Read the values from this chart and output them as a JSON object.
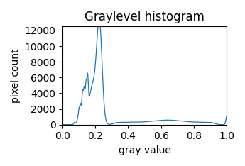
{
  "title": "Graylevel histogram",
  "xlabel": "gray value",
  "ylabel": "pixel count",
  "line_color": "#1f77b4",
  "xlim": [
    0.0,
    1.0
  ],
  "ylim": [
    0,
    12500
  ],
  "yticks": [
    0,
    2000,
    4000,
    6000,
    8000,
    10000,
    12000
  ],
  "xticks": [
    0.0,
    0.2,
    0.4,
    0.6,
    0.8,
    1.0
  ]
}
